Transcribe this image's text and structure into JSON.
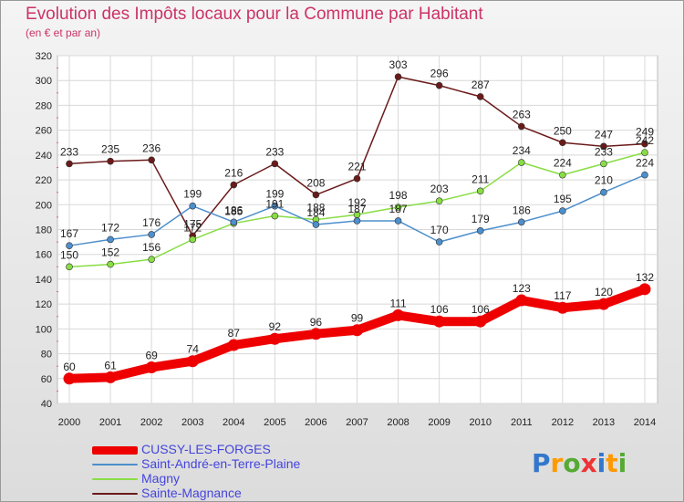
{
  "header": {
    "title": "Evolution des Impôts locaux pour la Commune par Habitant",
    "subtitle": "(en € et par an)"
  },
  "logo": {
    "text": "Proxiti",
    "colors": [
      "#3377cc",
      "#ff9900",
      "#55aa33",
      "#ee3333"
    ]
  },
  "chart_data": {
    "type": "line",
    "title": "Evolution des Impôts locaux pour la Commune par Habitant",
    "subtitle": "(en € et par an)",
    "xlabel": "",
    "ylabel": "",
    "ylim": [
      40,
      320
    ],
    "yticks": [
      40,
      60,
      80,
      100,
      120,
      140,
      160,
      180,
      200,
      220,
      240,
      260,
      280,
      300,
      320
    ],
    "grid": true,
    "legend": "bottom-left",
    "categories": [
      "2000",
      "2001",
      "2002",
      "2003",
      "2004",
      "2005",
      "2006",
      "2007",
      "2008",
      "2009",
      "2010",
      "2011",
      "2012",
      "2013",
      "2014"
    ],
    "series": [
      {
        "name": "CUSSY-LES-FORGES",
        "color": "#ee0000",
        "values": [
          60,
          61,
          69,
          74,
          87,
          92,
          96,
          99,
          111,
          106,
          106,
          123,
          117,
          120,
          132
        ]
      },
      {
        "name": "Saint-André-en-Terre-Plaine",
        "color": "#4d8fcc",
        "values": [
          167,
          172,
          176,
          199,
          186,
          199,
          184,
          187,
          187,
          170,
          179,
          186,
          195,
          210,
          224
        ]
      },
      {
        "name": "Magny",
        "color": "#88dd44",
        "values": [
          150,
          152,
          156,
          172,
          185,
          191,
          188,
          192,
          198,
          203,
          211,
          234,
          224,
          233,
          242
        ]
      },
      {
        "name": "Sainte-Magnance",
        "color": "#6b1a1a",
        "values": [
          233,
          235,
          236,
          175,
          216,
          233,
          208,
          221,
          303,
          296,
          287,
          263,
          250,
          247,
          249
        ]
      }
    ]
  }
}
